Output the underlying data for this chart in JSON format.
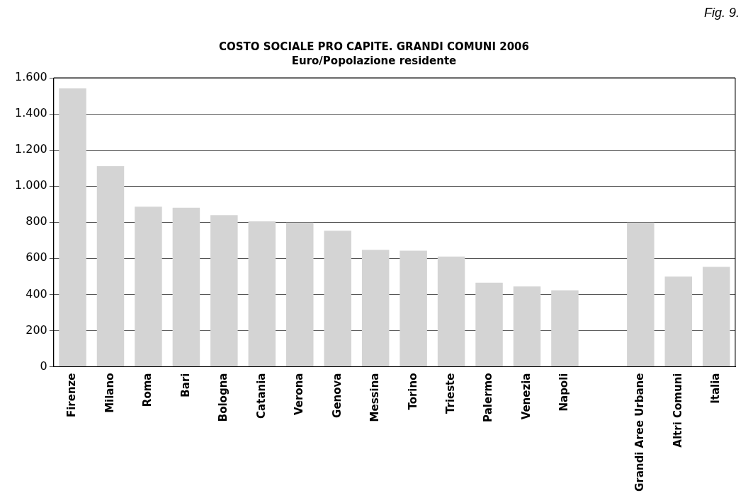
{
  "chart_data": {
    "type": "bar",
    "title": "COSTO SOCIALE PRO CAPITE. GRANDI COMUNI 2006",
    "subtitle": "Euro/Popolazione residente",
    "annotations": [
      "Fig. 9."
    ],
    "categories": [
      "Firenze",
      "Milano",
      "Roma",
      "Bari",
      "Bologna",
      "Catania",
      "Verona",
      "Genova",
      "Messina",
      "Torino",
      "Trieste",
      "Palermo",
      "Venezia",
      "Napoli",
      null,
      "Grandi Aree Urbane",
      "Altri Comuni",
      "Italia"
    ],
    "values": [
      1541,
      1110,
      886,
      880,
      839,
      805,
      798,
      753,
      647,
      642,
      610,
      465,
      445,
      423,
      null,
      798,
      499,
      553
    ],
    "color": "#d4d4d4",
    "ylim": [
      0,
      1600
    ],
    "yticks": [
      {
        "value": 0,
        "label": "0"
      },
      {
        "value": 200,
        "label": "200"
      },
      {
        "value": 400,
        "label": "400"
      },
      {
        "value": 600,
        "label": "600"
      },
      {
        "value": 800,
        "label": "800"
      },
      {
        "value": 1000,
        "label": "1.000"
      },
      {
        "value": 1200,
        "label": "1.200"
      },
      {
        "value": 1400,
        "label": "1.400"
      },
      {
        "value": 1600,
        "label": "1.600"
      }
    ],
    "grid": "y"
  }
}
